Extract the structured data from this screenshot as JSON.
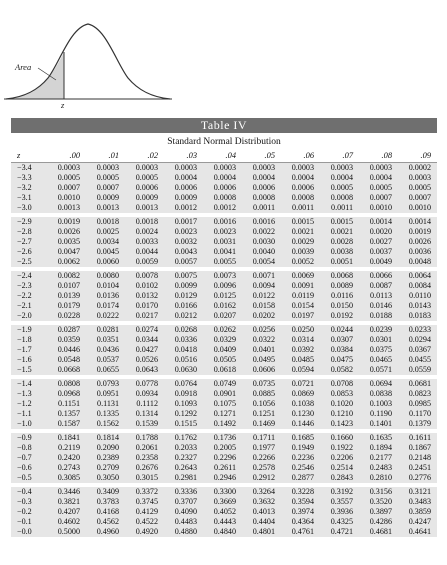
{
  "figure": {
    "area_label": "Area",
    "z_label": "z"
  },
  "title": "Table IV",
  "subtitle": "Standard Normal Distribution",
  "columns": [
    "z",
    ".00",
    ".01",
    ".02",
    ".03",
    ".04",
    ".05",
    ".06",
    ".07",
    ".08",
    ".09"
  ],
  "groups": [
    {
      "rows": [
        [
          "−3.4",
          "0.0003",
          "0.0003",
          "0.0003",
          "0.0003",
          "0.0003",
          "0.0003",
          "0.0003",
          "0.0003",
          "0.0003",
          "0.0002"
        ],
        [
          "−3.3",
          "0.0005",
          "0.0005",
          "0.0005",
          "0.0004",
          "0.0004",
          "0.0004",
          "0.0004",
          "0.0004",
          "0.0004",
          "0.0003"
        ],
        [
          "−3.2",
          "0.0007",
          "0.0007",
          "0.0006",
          "0.0006",
          "0.0006",
          "0.0006",
          "0.0006",
          "0.0005",
          "0.0005",
          "0.0005"
        ],
        [
          "−3.1",
          "0.0010",
          "0.0009",
          "0.0009",
          "0.0009",
          "0.0008",
          "0.0008",
          "0.0008",
          "0.0008",
          "0.0007",
          "0.0007"
        ],
        [
          "−3.0",
          "0.0013",
          "0.0013",
          "0.0013",
          "0.0012",
          "0.0012",
          "0.0011",
          "0.0011",
          "0.0011",
          "0.0010",
          "0.0010"
        ]
      ]
    },
    {
      "rows": [
        [
          "−2.9",
          "0.0019",
          "0.0018",
          "0.0018",
          "0.0017",
          "0.0016",
          "0.0016",
          "0.0015",
          "0.0015",
          "0.0014",
          "0.0014"
        ],
        [
          "−2.8",
          "0.0026",
          "0.0025",
          "0.0024",
          "0.0023",
          "0.0023",
          "0.0022",
          "0.0021",
          "0.0021",
          "0.0020",
          "0.0019"
        ],
        [
          "−2.7",
          "0.0035",
          "0.0034",
          "0.0033",
          "0.0032",
          "0.0031",
          "0.0030",
          "0.0029",
          "0.0028",
          "0.0027",
          "0.0026"
        ],
        [
          "−2.6",
          "0.0047",
          "0.0045",
          "0.0044",
          "0.0043",
          "0.0041",
          "0.0040",
          "0.0039",
          "0.0038",
          "0.0037",
          "0.0036"
        ],
        [
          "−2.5",
          "0.0062",
          "0.0060",
          "0.0059",
          "0.0057",
          "0.0055",
          "0.0054",
          "0.0052",
          "0.0051",
          "0.0049",
          "0.0048"
        ]
      ]
    },
    {
      "rows": [
        [
          "−2.4",
          "0.0082",
          "0.0080",
          "0.0078",
          "0.0075",
          "0.0073",
          "0.0071",
          "0.0069",
          "0.0068",
          "0.0066",
          "0.0064"
        ],
        [
          "−2.3",
          "0.0107",
          "0.0104",
          "0.0102",
          "0.0099",
          "0.0096",
          "0.0094",
          "0.0091",
          "0.0089",
          "0.0087",
          "0.0084"
        ],
        [
          "−2.2",
          "0.0139",
          "0.0136",
          "0.0132",
          "0.0129",
          "0.0125",
          "0.0122",
          "0.0119",
          "0.0116",
          "0.0113",
          "0.0110"
        ],
        [
          "−2.1",
          "0.0179",
          "0.0174",
          "0.0170",
          "0.0166",
          "0.0162",
          "0.0158",
          "0.0154",
          "0.0150",
          "0.0146",
          "0.0143"
        ],
        [
          "−2.0",
          "0.0228",
          "0.0222",
          "0.0217",
          "0.0212",
          "0.0207",
          "0.0202",
          "0.0197",
          "0.0192",
          "0.0188",
          "0.0183"
        ]
      ]
    },
    {
      "rows": [
        [
          "−1.9",
          "0.0287",
          "0.0281",
          "0.0274",
          "0.0268",
          "0.0262",
          "0.0256",
          "0.0250",
          "0.0244",
          "0.0239",
          "0.0233"
        ],
        [
          "−1.8",
          "0.0359",
          "0.0351",
          "0.0344",
          "0.0336",
          "0.0329",
          "0.0322",
          "0.0314",
          "0.0307",
          "0.0301",
          "0.0294"
        ],
        [
          "−1.7",
          "0.0446",
          "0.0436",
          "0.0427",
          "0.0418",
          "0.0409",
          "0.0401",
          "0.0392",
          "0.0384",
          "0.0375",
          "0.0367"
        ],
        [
          "−1.6",
          "0.0548",
          "0.0537",
          "0.0526",
          "0.0516",
          "0.0505",
          "0.0495",
          "0.0485",
          "0.0475",
          "0.0465",
          "0.0455"
        ],
        [
          "−1.5",
          "0.0668",
          "0.0655",
          "0.0643",
          "0.0630",
          "0.0618",
          "0.0606",
          "0.0594",
          "0.0582",
          "0.0571",
          "0.0559"
        ]
      ]
    },
    {
      "rows": [
        [
          "−1.4",
          "0.0808",
          "0.0793",
          "0.0778",
          "0.0764",
          "0.0749",
          "0.0735",
          "0.0721",
          "0.0708",
          "0.0694",
          "0.0681"
        ],
        [
          "−1.3",
          "0.0968",
          "0.0951",
          "0.0934",
          "0.0918",
          "0.0901",
          "0.0885",
          "0.0869",
          "0.0853",
          "0.0838",
          "0.0823"
        ],
        [
          "−1.2",
          "0.1151",
          "0.1131",
          "0.1112",
          "0.1093",
          "0.1075",
          "0.1056",
          "0.1038",
          "0.1020",
          "0.1003",
          "0.0985"
        ],
        [
          "−1.1",
          "0.1357",
          "0.1335",
          "0.1314",
          "0.1292",
          "0.1271",
          "0.1251",
          "0.1230",
          "0.1210",
          "0.1190",
          "0.1170"
        ],
        [
          "−1.0",
          "0.1587",
          "0.1562",
          "0.1539",
          "0.1515",
          "0.1492",
          "0.1469",
          "0.1446",
          "0.1423",
          "0.1401",
          "0.1379"
        ]
      ]
    },
    {
      "rows": [
        [
          "−0.9",
          "0.1841",
          "0.1814",
          "0.1788",
          "0.1762",
          "0.1736",
          "0.1711",
          "0.1685",
          "0.1660",
          "0.1635",
          "0.1611"
        ],
        [
          "−0.8",
          "0.2119",
          "0.2090",
          "0.2061",
          "0.2033",
          "0.2005",
          "0.1977",
          "0.1949",
          "0.1922",
          "0.1894",
          "0.1867"
        ],
        [
          "−0.7",
          "0.2420",
          "0.2389",
          "0.2358",
          "0.2327",
          "0.2296",
          "0.2266",
          "0.2236",
          "0.2206",
          "0.2177",
          "0.2148"
        ],
        [
          "−0.6",
          "0.2743",
          "0.2709",
          "0.2676",
          "0.2643",
          "0.2611",
          "0.2578",
          "0.2546",
          "0.2514",
          "0.2483",
          "0.2451"
        ],
        [
          "−0.5",
          "0.3085",
          "0.3050",
          "0.3015",
          "0.2981",
          "0.2946",
          "0.2912",
          "0.2877",
          "0.2843",
          "0.2810",
          "0.2776"
        ]
      ]
    },
    {
      "rows": [
        [
          "−0.4",
          "0.3446",
          "0.3409",
          "0.3372",
          "0.3336",
          "0.3300",
          "0.3264",
          "0.3228",
          "0.3192",
          "0.3156",
          "0.3121"
        ],
        [
          "−0.3",
          "0.3821",
          "0.3783",
          "0.3745",
          "0.3707",
          "0.3669",
          "0.3632",
          "0.3594",
          "0.3557",
          "0.3520",
          "0.3483"
        ],
        [
          "−0.2",
          "0.4207",
          "0.4168",
          "0.4129",
          "0.4090",
          "0.4052",
          "0.4013",
          "0.3974",
          "0.3936",
          "0.3897",
          "0.3859"
        ],
        [
          "−0.1",
          "0.4602",
          "0.4562",
          "0.4522",
          "0.4483",
          "0.4443",
          "0.4404",
          "0.4364",
          "0.4325",
          "0.4286",
          "0.4247"
        ],
        [
          "−0.0",
          "0.5000",
          "0.4960",
          "0.4920",
          "0.4880",
          "0.4840",
          "0.4801",
          "0.4761",
          "0.4721",
          "0.4681",
          "0.4641"
        ]
      ]
    }
  ]
}
